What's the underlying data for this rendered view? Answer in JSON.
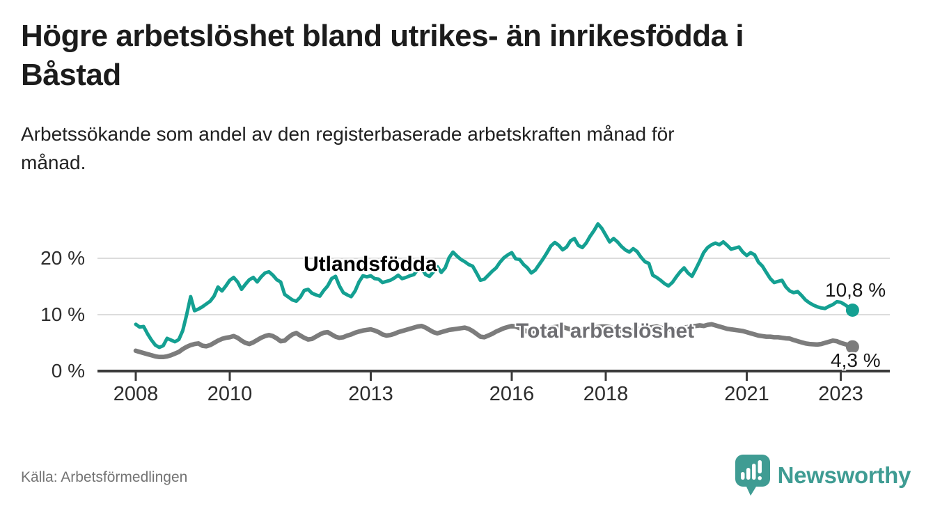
{
  "title": "Högre arbetslöshet bland utrikes- än inrikesfödda i Båstad",
  "title_lines": [
    "Högre arbetslöshet bland utrikes- än inrikesfödda i",
    "Båstad"
  ],
  "subtitle": "Arbetssökande som andel av den registerbaserade arbetskraften månad för månad.",
  "subtitle_lines": [
    "Arbetssökande som andel av den registerbaserade arbetskraften månad för",
    "månad."
  ],
  "source": "Källa: Arbetsförmedlingen",
  "brand": {
    "name": "Newsworthy",
    "color": "#3f9c93",
    "logo_icon": "speech-bubble-bar-chart"
  },
  "colors": {
    "title": "#1c1c1c",
    "grid": "#dcdcdc",
    "axis": "#3b3b3b",
    "utlandsfodda": "#14a092",
    "total": "#7c7c7c",
    "total_label": "#6e6e72",
    "end_label": "#191919"
  },
  "chart_data": {
    "type": "line",
    "unit": "%",
    "x_start_year": 2008,
    "x_end": "2023-04",
    "months_per_point": 1,
    "x_tick_years": [
      2008,
      2010,
      2013,
      2016,
      2018,
      2021,
      2023
    ],
    "x_tick_labels": [
      "2008",
      "2010",
      "2013",
      "2016",
      "2018",
      "2021",
      "2023"
    ],
    "y_ticks": [
      {
        "value": 0,
        "label": "0 %"
      },
      {
        "value": 10,
        "label": "10 %"
      },
      {
        "value": 20,
        "label": "20 %"
      }
    ],
    "ylim": [
      0,
      27
    ],
    "grid": "horizontal",
    "legend_position": "inline-labels",
    "series": [
      {
        "name": "Utlandsfödda",
        "color": "#14a092",
        "end_value": 10.8,
        "end_label": "10,8 %",
        "values": [
          8.3,
          7.8,
          7.9,
          6.6,
          5.5,
          4.6,
          4.2,
          4.5,
          5.8,
          5.5,
          5.2,
          5.6,
          7.2,
          10.0,
          13.2,
          10.7,
          11.0,
          11.4,
          11.9,
          12.4,
          13.3,
          14.9,
          14.2,
          15.1,
          16.1,
          16.6,
          15.8,
          14.5,
          15.4,
          16.2,
          16.6,
          15.8,
          16.7,
          17.4,
          17.6,
          17.0,
          16.2,
          15.8,
          13.6,
          13.1,
          12.6,
          12.4,
          13.1,
          14.3,
          14.5,
          13.8,
          13.5,
          13.3,
          14.3,
          15.1,
          16.4,
          16.8,
          15.1,
          13.9,
          13.5,
          13.2,
          14.2,
          15.8,
          16.9,
          16.7,
          16.9,
          16.4,
          16.3,
          15.7,
          15.9,
          16.1,
          16.5,
          17.0,
          16.4,
          16.6,
          16.9,
          17.1,
          18.0,
          18.3,
          17.1,
          16.8,
          17.6,
          18.5,
          17.5,
          18.3,
          20.1,
          21.1,
          20.4,
          19.8,
          19.4,
          18.9,
          18.6,
          17.4,
          16.1,
          16.3,
          17.0,
          17.7,
          18.3,
          19.3,
          20.1,
          20.6,
          21.0,
          19.9,
          19.8,
          18.9,
          18.3,
          17.4,
          17.9,
          18.9,
          19.9,
          21.0,
          22.2,
          22.8,
          22.3,
          21.5,
          22.0,
          23.1,
          23.5,
          22.3,
          21.9,
          22.7,
          23.9,
          24.9,
          26.1,
          25.3,
          24.1,
          22.9,
          23.5,
          22.9,
          22.1,
          21.5,
          21.1,
          21.7,
          21.2,
          20.2,
          19.4,
          19.1,
          17.0,
          16.6,
          16.1,
          15.5,
          15.1,
          15.7,
          16.7,
          17.6,
          18.3,
          17.4,
          16.8,
          18.1,
          19.5,
          21.0,
          21.9,
          22.4,
          22.7,
          22.4,
          22.9,
          22.3,
          21.6,
          21.8,
          22.0,
          21.1,
          20.5,
          21.0,
          20.6,
          19.3,
          18.6,
          17.5,
          16.4,
          15.7,
          15.9,
          16.1,
          14.9,
          14.2,
          13.9,
          14.1,
          13.4,
          12.6,
          12.1,
          11.7,
          11.4,
          11.2,
          11.1,
          11.5,
          11.8,
          12.3,
          12.2,
          11.8,
          11.3,
          10.8
        ]
      },
      {
        "name": "Total arbetslöshet",
        "color": "#7c7c7c",
        "end_value": 4.3,
        "end_label": "4,3 %",
        "values": [
          3.6,
          3.4,
          3.2,
          3.0,
          2.8,
          2.6,
          2.5,
          2.5,
          2.6,
          2.8,
          3.1,
          3.4,
          3.9,
          4.3,
          4.6,
          4.8,
          4.9,
          4.5,
          4.4,
          4.6,
          5.0,
          5.4,
          5.7,
          5.9,
          6.0,
          6.2,
          5.9,
          5.4,
          5.0,
          4.8,
          5.1,
          5.5,
          5.9,
          6.2,
          6.4,
          6.2,
          5.8,
          5.3,
          5.4,
          6.0,
          6.5,
          6.75,
          6.3,
          5.9,
          5.6,
          5.7,
          6.1,
          6.5,
          6.8,
          6.9,
          6.5,
          6.1,
          5.9,
          6.0,
          6.3,
          6.5,
          6.8,
          7.0,
          7.2,
          7.3,
          7.4,
          7.2,
          6.9,
          6.5,
          6.3,
          6.4,
          6.6,
          6.9,
          7.1,
          7.3,
          7.5,
          7.7,
          7.9,
          8.0,
          7.7,
          7.3,
          6.9,
          6.7,
          6.9,
          7.1,
          7.3,
          7.4,
          7.5,
          7.6,
          7.7,
          7.5,
          7.1,
          6.6,
          6.1,
          6.0,
          6.3,
          6.6,
          7.0,
          7.3,
          7.6,
          7.8,
          8.0,
          7.9,
          7.6,
          7.3,
          7.0,
          6.9,
          7.1,
          7.3,
          7.5,
          7.6,
          7.7,
          7.8,
          7.9,
          7.8,
          7.6,
          7.4,
          7.2,
          7.1,
          7.3,
          7.5,
          7.6,
          7.7,
          7.8,
          7.9,
          7.9,
          7.8,
          7.6,
          7.4,
          7.2,
          7.0,
          7.1,
          7.3,
          7.4,
          7.5,
          7.6,
          7.7,
          7.8,
          7.9,
          7.7,
          7.5,
          7.4,
          7.3,
          7.4,
          7.6,
          7.7,
          7.8,
          7.9,
          8.0,
          8.1,
          8.0,
          8.2,
          8.3,
          8.1,
          7.9,
          7.7,
          7.5,
          7.4,
          7.3,
          7.2,
          7.1,
          6.9,
          6.7,
          6.5,
          6.3,
          6.2,
          6.1,
          6.1,
          6.0,
          6.0,
          5.9,
          5.8,
          5.75,
          5.5,
          5.3,
          5.1,
          4.9,
          4.8,
          4.75,
          4.7,
          4.8,
          5.0,
          5.2,
          5.4,
          5.3,
          5.0,
          4.8,
          4.6,
          4.3
        ]
      }
    ]
  }
}
